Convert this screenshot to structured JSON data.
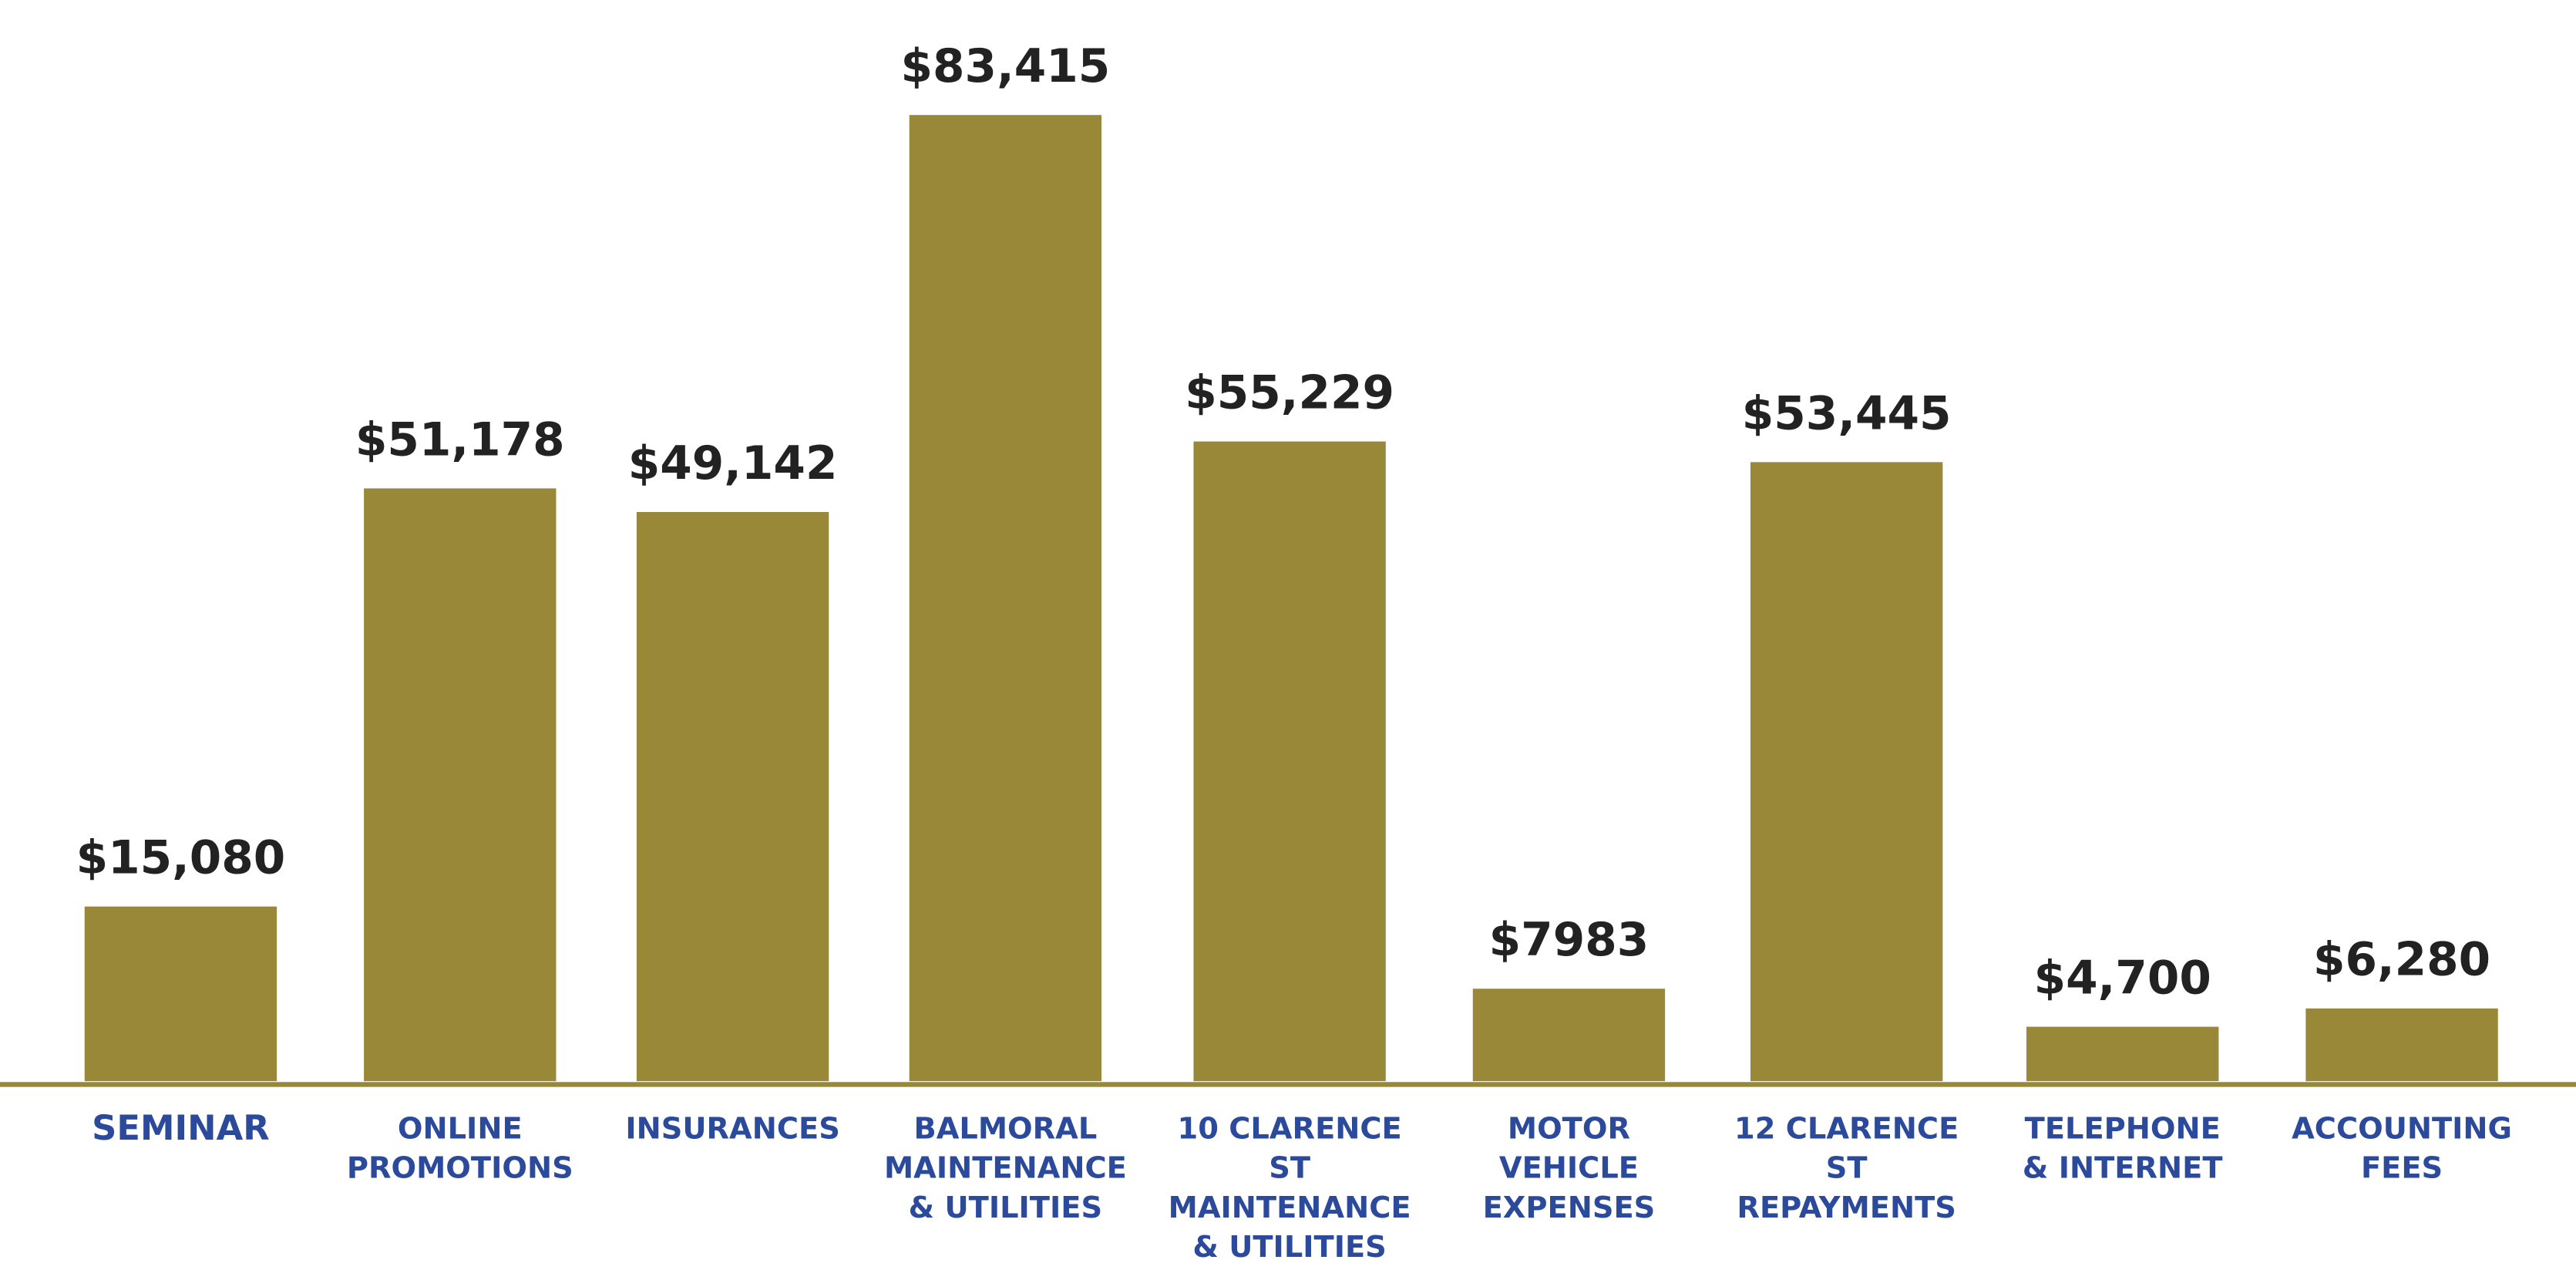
{
  "chart_data": {
    "type": "bar",
    "categories": [
      [
        "SEMINAR"
      ],
      [
        "ONLINE",
        "PROMOTIONS"
      ],
      [
        "INSURANCES"
      ],
      [
        "BALMORAL",
        "MAINTENANCE",
        "& UTILITIES"
      ],
      [
        "10 CLARENCE",
        "ST",
        "MAINTENANCE",
        "& UTILITIES"
      ],
      [
        "MOTOR",
        "VEHICLE",
        "EXPENSES"
      ],
      [
        "12 CLARENCE",
        "ST",
        "REPAYMENTS"
      ],
      [
        "TELEPHONE",
        "& INTERNET"
      ],
      [
        "ACCOUNTING",
        "FEES"
      ]
    ],
    "values": [
      15080,
      51178,
      49142,
      83415,
      55229,
      7983,
      53445,
      4700,
      6280
    ],
    "value_labels": [
      "$15,080",
      "$51,178",
      "$49,142",
      "$83,415",
      "$55,229",
      "$7983",
      "$53,445",
      "$4,700",
      "$6,280"
    ],
    "color": "#9a8839"
  }
}
